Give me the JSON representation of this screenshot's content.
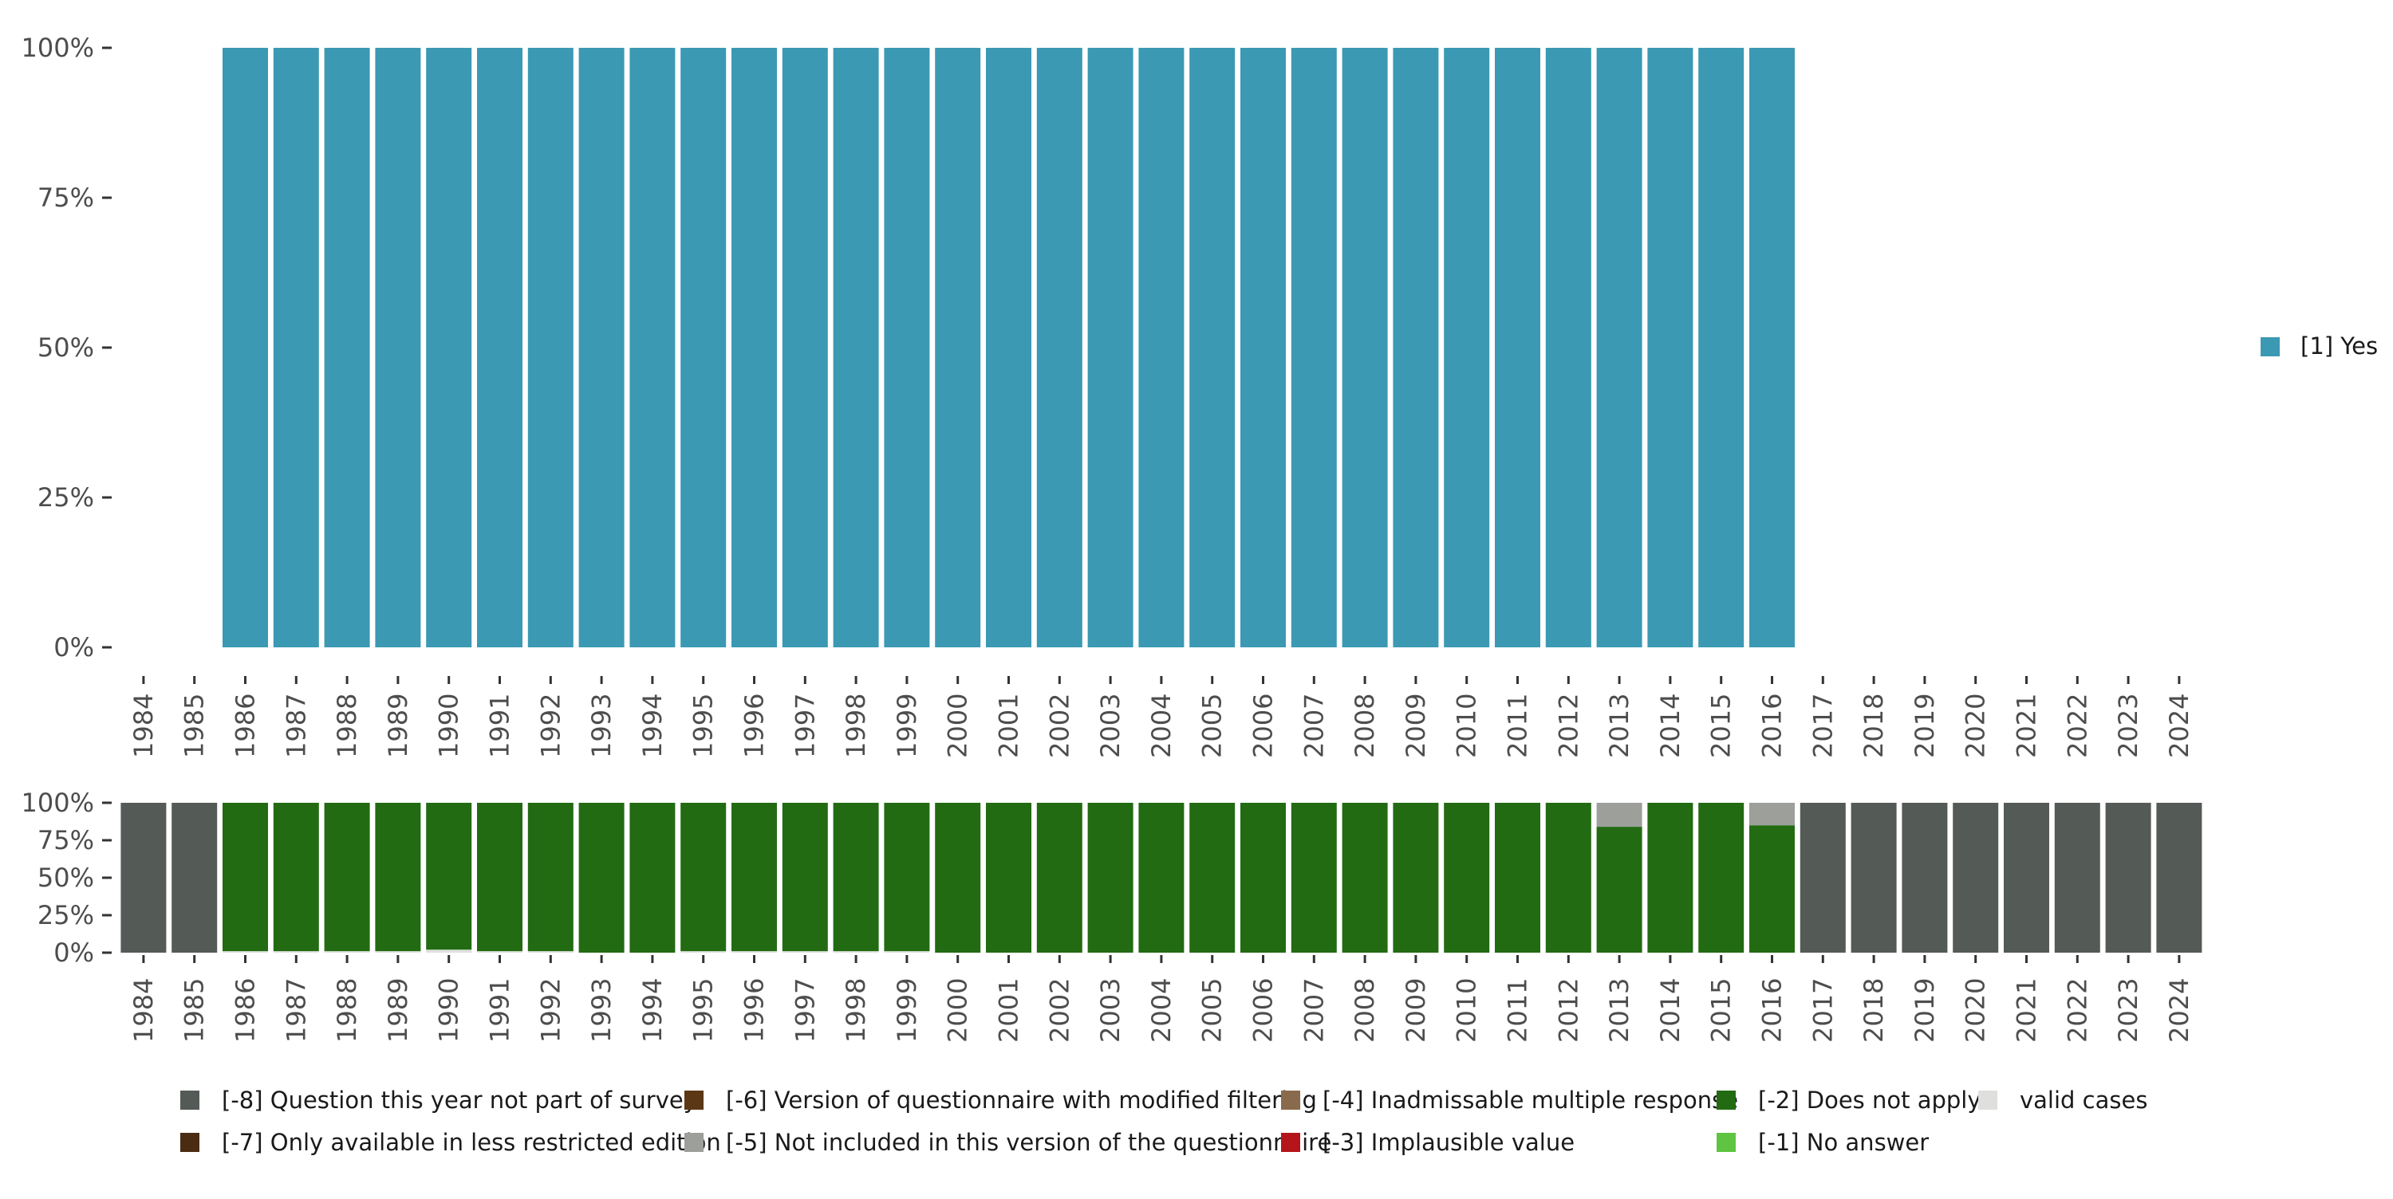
{
  "chart_data": [
    {
      "type": "bar",
      "stacked": true,
      "title": "",
      "xlabel": "",
      "ylabel": "",
      "ylim": [
        0,
        100
      ],
      "yticks": [
        "0%",
        "25%",
        "50%",
        "75%",
        "100%"
      ],
      "categories": [
        "1984",
        "1985",
        "1986",
        "1987",
        "1988",
        "1989",
        "1990",
        "1991",
        "1992",
        "1993",
        "1994",
        "1995",
        "1996",
        "1997",
        "1998",
        "1999",
        "2000",
        "2001",
        "2002",
        "2003",
        "2004",
        "2005",
        "2006",
        "2007",
        "2008",
        "2009",
        "2010",
        "2011",
        "2012",
        "2013",
        "2014",
        "2015",
        "2016",
        "2017",
        "2018",
        "2019",
        "2020",
        "2021",
        "2022",
        "2023",
        "2024"
      ],
      "series": [
        {
          "name": "[1] Yes",
          "color": "#3b99b3",
          "values": [
            0,
            0,
            100,
            100,
            100,
            100,
            100,
            100,
            100,
            100,
            100,
            100,
            100,
            100,
            100,
            100,
            100,
            100,
            100,
            100,
            100,
            100,
            100,
            100,
            100,
            100,
            100,
            100,
            100,
            100,
            100,
            100,
            100,
            0,
            0,
            0,
            0,
            0,
            0,
            0,
            0
          ]
        }
      ],
      "legend": {
        "position": "right",
        "items": [
          {
            "label": "[1] Yes",
            "color": "#3b99b3"
          }
        ]
      }
    },
    {
      "type": "bar",
      "stacked": true,
      "title": "",
      "xlabel": "",
      "ylabel": "",
      "ylim": [
        0,
        100
      ],
      "yticks": [
        "0%",
        "25%",
        "50%",
        "75%",
        "100%"
      ],
      "categories": [
        "1984",
        "1985",
        "1986",
        "1987",
        "1988",
        "1989",
        "1990",
        "1991",
        "1992",
        "1993",
        "1994",
        "1995",
        "1996",
        "1997",
        "1998",
        "1999",
        "2000",
        "2001",
        "2002",
        "2003",
        "2004",
        "2005",
        "2006",
        "2007",
        "2008",
        "2009",
        "2010",
        "2011",
        "2012",
        "2013",
        "2014",
        "2015",
        "2016",
        "2017",
        "2018",
        "2019",
        "2020",
        "2021",
        "2022",
        "2023",
        "2024"
      ],
      "series": [
        {
          "name": "valid cases",
          "color": "#dfe0dd",
          "values": [
            0,
            0,
            1,
            1,
            1,
            1,
            2,
            1,
            1,
            0,
            0,
            1,
            1,
            1,
            1,
            1,
            0,
            0,
            0,
            0,
            0,
            0,
            0,
            0,
            0,
            0,
            0,
            0,
            0,
            0,
            0,
            0,
            0,
            0,
            0,
            0,
            0,
            0,
            0,
            0,
            0
          ]
        },
        {
          "name": "[-2] Does not apply",
          "color": "#226b12",
          "values": [
            0,
            0,
            99,
            99,
            99,
            99,
            98,
            99,
            99,
            100,
            100,
            99,
            99,
            99,
            99,
            99,
            100,
            100,
            100,
            100,
            100,
            100,
            100,
            100,
            100,
            100,
            100,
            100,
            100,
            84,
            100,
            100,
            85,
            0,
            0,
            0,
            0,
            0,
            0,
            0,
            0
          ]
        },
        {
          "name": "[-5] Not included in this version of the questionnaire",
          "color": "#9d9f9b",
          "values": [
            0,
            0,
            0,
            0,
            0,
            0,
            0,
            0,
            0,
            0,
            0,
            0,
            0,
            0,
            0,
            0,
            0,
            0,
            0,
            0,
            0,
            0,
            0,
            0,
            0,
            0,
            0,
            0,
            0,
            16,
            0,
            0,
            15,
            0,
            0,
            0,
            0,
            0,
            0,
            0,
            0
          ]
        },
        {
          "name": "[-8] Question this year not part of survey",
          "color": "#545a55",
          "values": [
            100,
            100,
            0,
            0,
            0,
            0,
            0,
            0,
            0,
            0,
            0,
            0,
            0,
            0,
            0,
            0,
            0,
            0,
            0,
            0,
            0,
            0,
            0,
            0,
            0,
            0,
            0,
            0,
            0,
            0,
            0,
            0,
            0,
            100,
            100,
            100,
            100,
            100,
            100,
            100,
            100
          ]
        }
      ],
      "legend": {
        "position": "bottom",
        "items": [
          {
            "label": "[-8] Question this year not part of survey",
            "color": "#545a55"
          },
          {
            "label": "[-7] Only available in less restricted edition",
            "color": "#4a2c13"
          },
          {
            "label": "[-6] Version of questionnaire with modified filtering",
            "color": "#5b3716"
          },
          {
            "label": "[-5] Not included in this version of the questionnaire",
            "color": "#9d9f9b"
          },
          {
            "label": "[-4] Inadmissable multiple response",
            "color": "#8a6a4c"
          },
          {
            "label": "[-3] Implausible value",
            "color": "#b3151a"
          },
          {
            "label": "[-2] Does not apply",
            "color": "#226b12"
          },
          {
            "label": "[-1] No answer",
            "color": "#5ec441"
          },
          {
            "label": "valid cases",
            "color": "#dfe0dd"
          }
        ]
      }
    }
  ]
}
